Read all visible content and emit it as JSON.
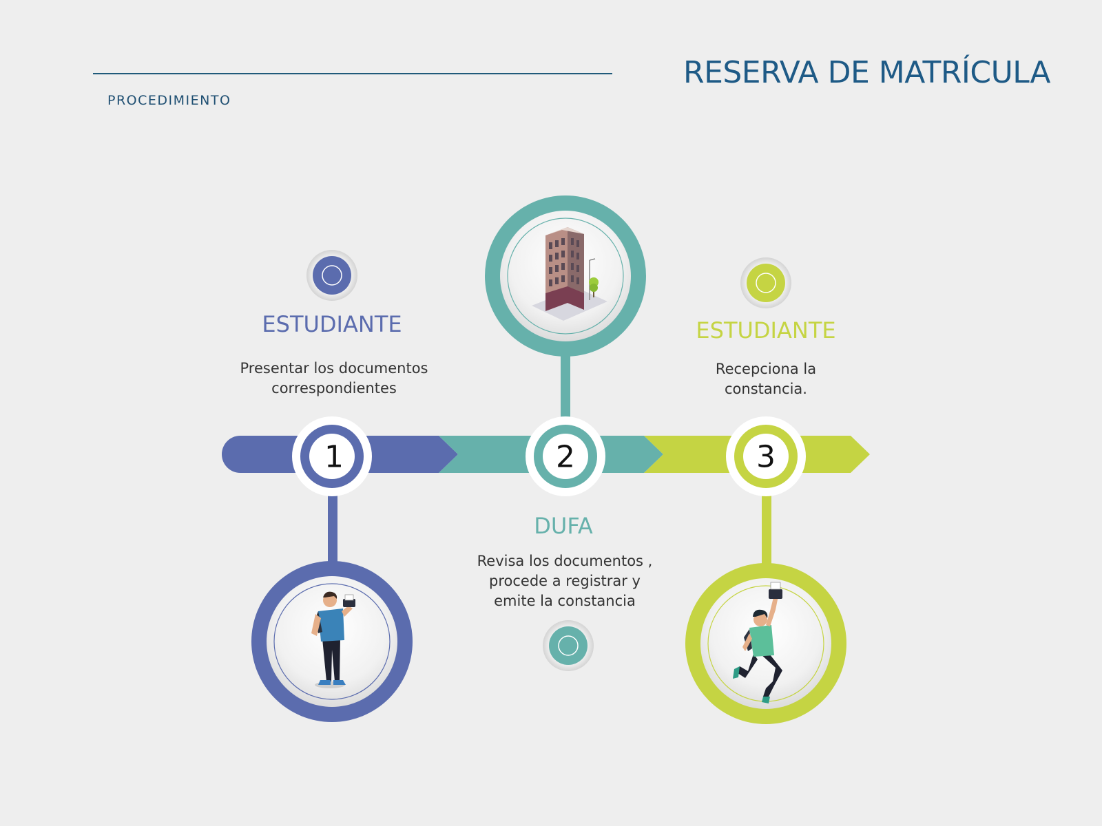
{
  "header": {
    "section_label": "PROCEDIMIENTO",
    "title": "RESERVA DE MATRÍCULA"
  },
  "colors": {
    "background": "#eeeeee",
    "header_text": "#1e5a86",
    "step1": "#5b6cae",
    "step2": "#66b1ab",
    "step3": "#c5d443"
  },
  "steps": [
    {
      "number": "1",
      "role": "ESTUDIANTE",
      "description_lines": [
        "Presentar los  documentos",
        "correspondientes"
      ],
      "illustration": "student-standing-icon"
    },
    {
      "number": "2",
      "role": "DUFA",
      "description_lines": [
        "Revisa los documentos ,",
        "procede a registrar y",
        "emite la constancia"
      ],
      "illustration": "building-icon"
    },
    {
      "number": "3",
      "role": "ESTUDIANTE",
      "description_lines": [
        "Recepciona la",
        "constancia."
      ],
      "illustration": "student-jumping-icon"
    }
  ]
}
